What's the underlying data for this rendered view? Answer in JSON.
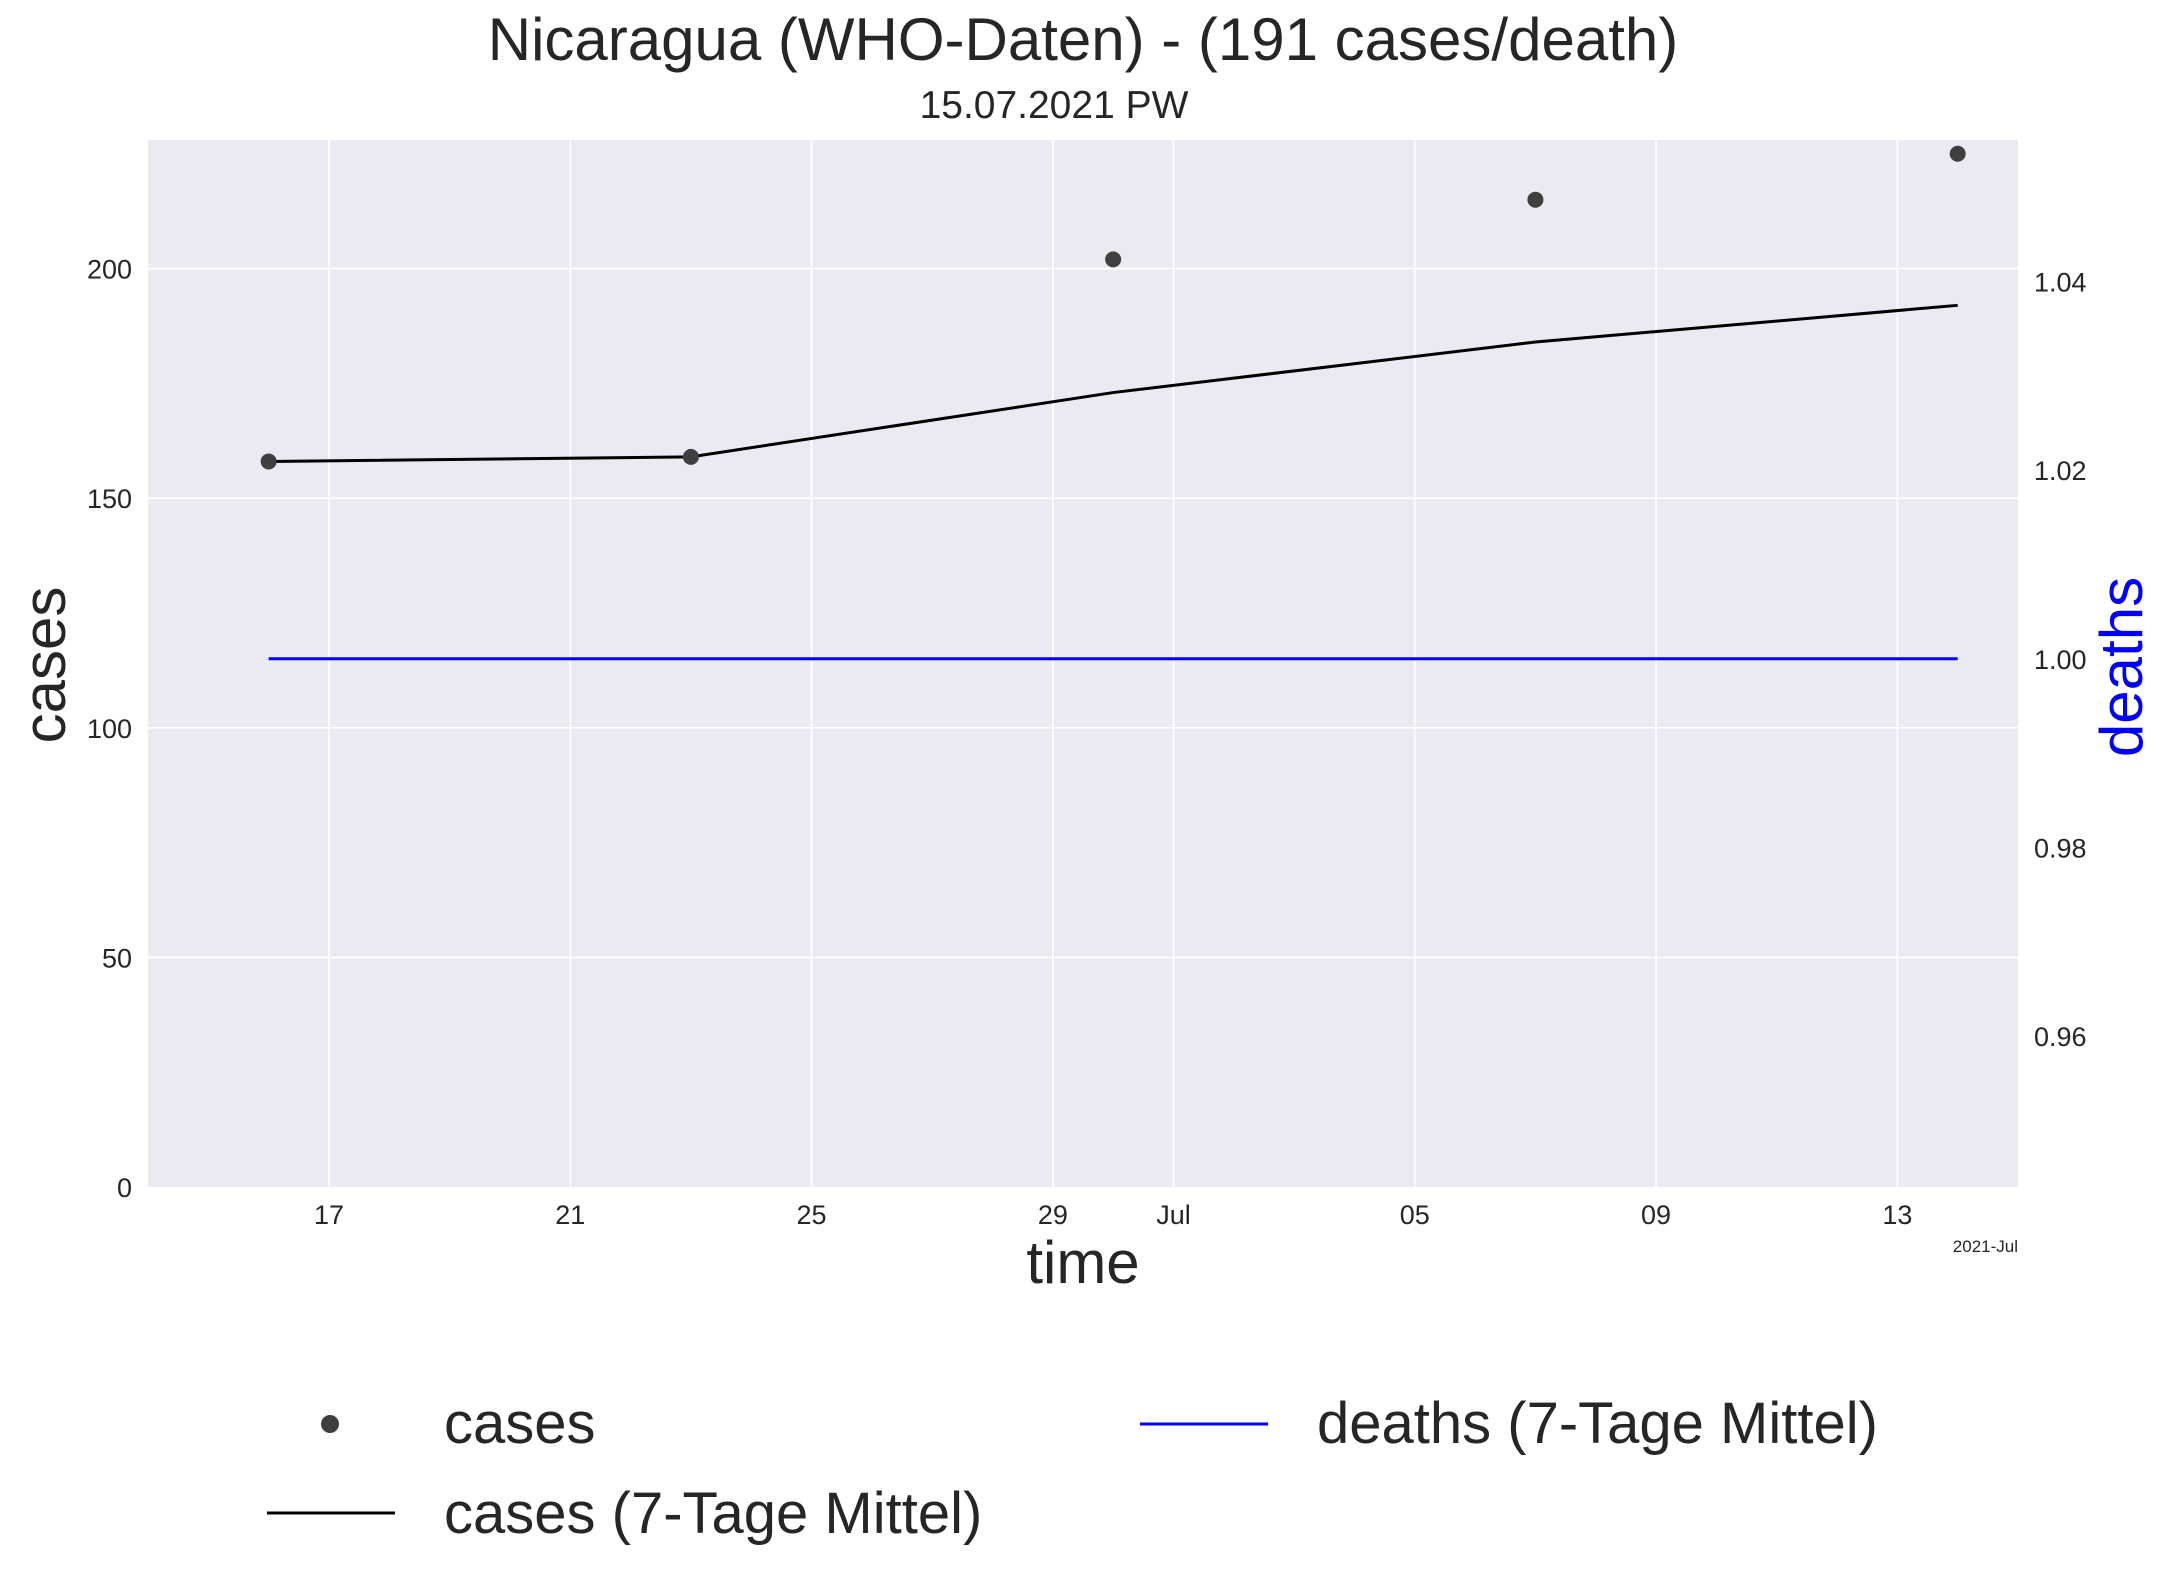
{
  "chart_data": {
    "type": "line",
    "title": "Nicaragua (WHO-Daten) - (191 cases/death)",
    "subtitle": "15.07.2021 PW",
    "xlabel": "time",
    "ylabel": "cases",
    "y2label": "deaths",
    "x_offset_label": "2021-Jul",
    "x_ticks": [
      {
        "date": "2021-06-17",
        "label": "17"
      },
      {
        "date": "2021-06-21",
        "label": "21"
      },
      {
        "date": "2021-06-25",
        "label": "25"
      },
      {
        "date": "2021-06-29",
        "label": "29"
      },
      {
        "date": "2021-07-01",
        "label": "Jul"
      },
      {
        "date": "2021-07-05",
        "label": "05"
      },
      {
        "date": "2021-07-09",
        "label": "09"
      },
      {
        "date": "2021-07-13",
        "label": "13"
      }
    ],
    "xlim": [
      "2021-06-14",
      "2021-07-15"
    ],
    "ylim": [
      0,
      228
    ],
    "y_ticks": [
      0,
      50,
      100,
      150,
      200
    ],
    "y2lim": [
      0.944,
      1.055
    ],
    "y2_ticks": [
      "0.96",
      "0.98",
      "1.00",
      "1.02",
      "1.04"
    ],
    "grid": true,
    "legend_position": "bottom",
    "colors": {
      "background": "#eaeaf2",
      "grid": "#ffffff",
      "cases_points": "#3f3f3f",
      "cases_avg": "#000000",
      "deaths_avg": "#0000ff",
      "deaths_label": "#0000ff"
    },
    "series": [
      {
        "name": "cases",
        "kind": "scatter",
        "axis": "left",
        "x": [
          "2021-06-16",
          "2021-06-23",
          "2021-06-30",
          "2021-07-07",
          "2021-07-14"
        ],
        "y": [
          158,
          159,
          202,
          215,
          225
        ]
      },
      {
        "name": "cases (7-Tage Mittel)",
        "kind": "line",
        "axis": "left",
        "x": [
          "2021-06-16",
          "2021-06-23",
          "2021-06-30",
          "2021-07-07",
          "2021-07-14"
        ],
        "y": [
          158,
          159,
          173,
          184,
          192
        ]
      },
      {
        "name": "deaths (7-Tage Mittel)",
        "kind": "line",
        "axis": "right",
        "x": [
          "2021-06-16",
          "2021-07-14"
        ],
        "y": [
          1.0,
          1.0
        ]
      }
    ]
  }
}
